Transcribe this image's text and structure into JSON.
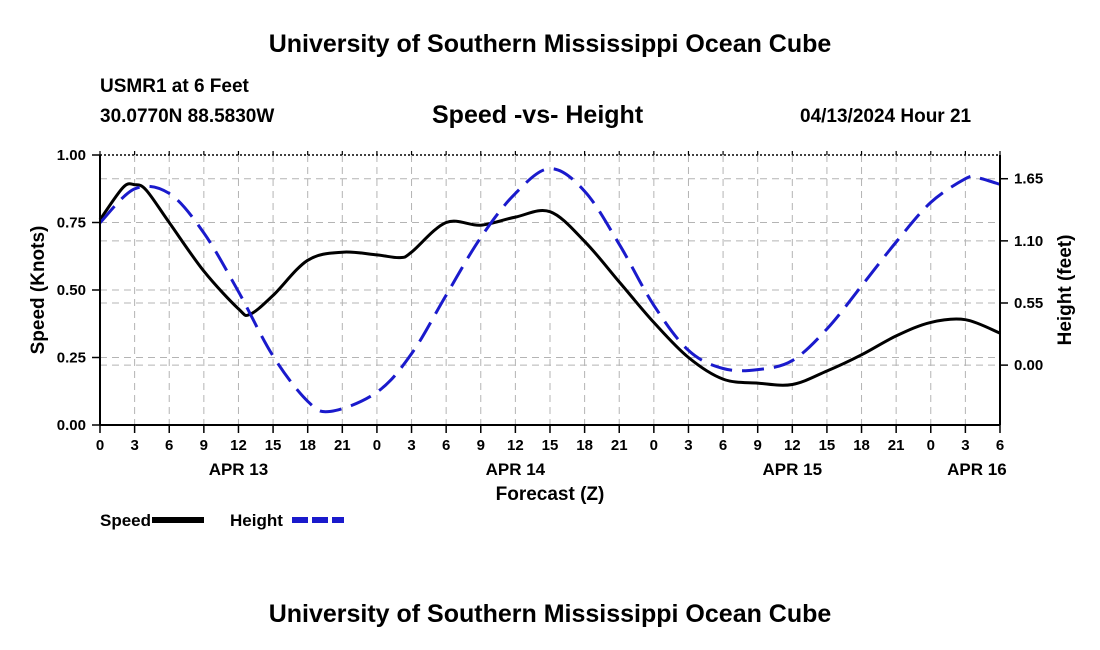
{
  "header": {
    "title": "University of Southern Mississippi Ocean Cube",
    "station": "USMR1 at 6 Feet",
    "coordinates": "30.0770N  88.5830W",
    "subtitle": "Speed -vs- Height",
    "datetime": "04/13/2024 Hour 21"
  },
  "footer": {
    "title": "University of Southern Mississippi Ocean Cube"
  },
  "chart_data": {
    "type": "line",
    "title": "Speed -vs- Height",
    "xlabel": "Forecast (Z)",
    "ylabel": "Speed (Knots)",
    "y2label": "Height (feet)",
    "x_range_hours": [
      0,
      78
    ],
    "x_ticks": [
      {
        "h": 0,
        "label": "0"
      },
      {
        "h": 3,
        "label": "3"
      },
      {
        "h": 6,
        "label": "6"
      },
      {
        "h": 9,
        "label": "9"
      },
      {
        "h": 12,
        "label": "12"
      },
      {
        "h": 15,
        "label": "15"
      },
      {
        "h": 18,
        "label": "18"
      },
      {
        "h": 21,
        "label": "21"
      },
      {
        "h": 24,
        "label": "0"
      },
      {
        "h": 27,
        "label": "3"
      },
      {
        "h": 30,
        "label": "6"
      },
      {
        "h": 33,
        "label": "9"
      },
      {
        "h": 36,
        "label": "12"
      },
      {
        "h": 39,
        "label": "15"
      },
      {
        "h": 42,
        "label": "18"
      },
      {
        "h": 45,
        "label": "21"
      },
      {
        "h": 48,
        "label": "0"
      },
      {
        "h": 51,
        "label": "3"
      },
      {
        "h": 54,
        "label": "6"
      },
      {
        "h": 57,
        "label": "9"
      },
      {
        "h": 60,
        "label": "12"
      },
      {
        "h": 63,
        "label": "15"
      },
      {
        "h": 66,
        "label": "18"
      },
      {
        "h": 69,
        "label": "21"
      },
      {
        "h": 72,
        "label": "0"
      },
      {
        "h": 75,
        "label": "3"
      },
      {
        "h": 78,
        "label": "6"
      }
    ],
    "date_labels": [
      {
        "h": 12,
        "label": "APR 13"
      },
      {
        "h": 36,
        "label": "APR 14"
      },
      {
        "h": 60,
        "label": "APR 15"
      },
      {
        "h": 76,
        "label": "APR 16"
      }
    ],
    "ylim": [
      0,
      1
    ],
    "y_ticks": [
      0,
      0.25,
      0.5,
      0.75,
      1.0
    ],
    "y_tick_labels": [
      "0.00",
      "0.25",
      "0.50",
      "0.75",
      "1.00"
    ],
    "y2_ticks": [
      0,
      0.55,
      1.1,
      1.65
    ],
    "y2_tick_labels": [
      "0.00",
      "0.55",
      "1.10",
      "1.65"
    ],
    "y2_value_at_y_zero": -0.53,
    "y2_value_at_y_one": 1.86,
    "series": [
      {
        "name": "Speed",
        "color": "#000000",
        "style": "solid",
        "axis": "left",
        "hours": [
          0,
          2,
          3,
          4,
          6,
          9,
          12,
          13,
          15,
          18,
          21,
          24,
          26,
          27,
          30,
          33,
          36,
          39,
          42,
          45,
          48,
          51,
          54,
          57,
          60,
          63,
          66,
          69,
          72,
          75,
          78
        ],
        "values": [
          0.76,
          0.88,
          0.89,
          0.87,
          0.75,
          0.57,
          0.43,
          0.41,
          0.48,
          0.61,
          0.64,
          0.63,
          0.62,
          0.64,
          0.75,
          0.74,
          0.77,
          0.79,
          0.68,
          0.53,
          0.38,
          0.25,
          0.17,
          0.155,
          0.15,
          0.2,
          0.26,
          0.33,
          0.38,
          0.39,
          0.34
        ]
      },
      {
        "name": "Height",
        "color": "#1a1acc",
        "style": "dashed",
        "axis": "right",
        "hours": [
          0,
          3,
          6,
          9,
          12,
          15,
          18,
          20,
          24,
          27,
          30,
          33,
          36,
          39,
          42,
          45,
          48,
          51,
          54,
          57,
          60,
          63,
          66,
          69,
          72,
          75,
          76,
          78
        ],
        "values": [
          1.26,
          1.56,
          1.52,
          1.17,
          0.65,
          0.08,
          -0.32,
          -0.41,
          -0.24,
          0.1,
          0.62,
          1.13,
          1.52,
          1.74,
          1.54,
          1.07,
          0.53,
          0.13,
          -0.03,
          -0.04,
          0.04,
          0.32,
          0.7,
          1.09,
          1.44,
          1.65,
          1.66,
          1.6
        ]
      }
    ],
    "legend": [
      {
        "label": "Speed",
        "color": "#000000",
        "style": "solid"
      },
      {
        "label": "Height",
        "color": "#1a1acc",
        "style": "dashed"
      }
    ]
  }
}
